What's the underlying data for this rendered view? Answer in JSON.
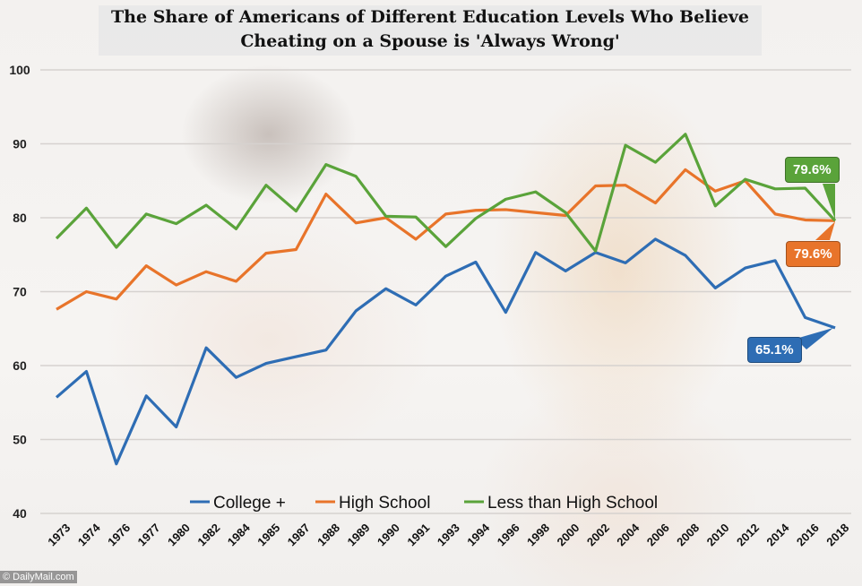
{
  "chart_data": {
    "type": "line",
    "title": "The Share of Americans of Different Education Levels Who Believe Cheating on a Spouse is 'Always Wrong'",
    "title_lines": [
      "The Share of Americans of Different Education Levels Who Believe",
      "Cheating on a Spouse is 'Always Wrong'"
    ],
    "xlabel": "",
    "ylabel": "",
    "ylim": [
      40,
      100
    ],
    "yticks": [
      40,
      50,
      60,
      70,
      80,
      90,
      100
    ],
    "grid": true,
    "legend_position": "bottom",
    "categories": [
      "1973",
      "1974",
      "1976",
      "1977",
      "1980",
      "1982",
      "1984",
      "1985",
      "1987",
      "1988",
      "1989",
      "1990",
      "1991",
      "1993",
      "1994",
      "1996",
      "1998",
      "2000",
      "2002",
      "2004",
      "2006",
      "2008",
      "2010",
      "2012",
      "2014",
      "2016",
      "2018"
    ],
    "series": [
      {
        "name": "College +",
        "color": "#2e6db4",
        "values": [
          55.7,
          59.2,
          46.7,
          55.9,
          51.7,
          62.4,
          58.4,
          60.3,
          61.2,
          62.1,
          67.4,
          70.4,
          68.2,
          72.1,
          74.0,
          67.2,
          75.3,
          72.8,
          75.3,
          73.9,
          77.1,
          74.9,
          70.5,
          73.2,
          74.2,
          66.5,
          65.1
        ],
        "end_label": "65.1%"
      },
      {
        "name": "High School",
        "color": "#e8742a",
        "values": [
          67.6,
          70.0,
          69.0,
          73.5,
          70.9,
          72.7,
          71.4,
          75.2,
          75.7,
          83.2,
          79.3,
          80.0,
          77.1,
          80.5,
          81.0,
          81.1,
          80.7,
          80.3,
          84.3,
          84.4,
          82.0,
          86.5,
          83.6,
          85.0,
          80.5,
          79.7,
          79.6
        ],
        "end_label": "79.6%"
      },
      {
        "name": "Less than High School",
        "color": "#5aa33a",
        "values": [
          77.2,
          81.3,
          76.0,
          80.5,
          79.2,
          81.7,
          78.5,
          84.4,
          80.9,
          87.2,
          85.6,
          80.2,
          80.1,
          76.1,
          79.9,
          82.5,
          83.5,
          80.7,
          75.5,
          89.8,
          87.5,
          91.3,
          81.6,
          85.2,
          83.9,
          84.0,
          79.6
        ],
        "end_label": "79.6%"
      }
    ]
  },
  "watermark": "© DailyMail.com"
}
